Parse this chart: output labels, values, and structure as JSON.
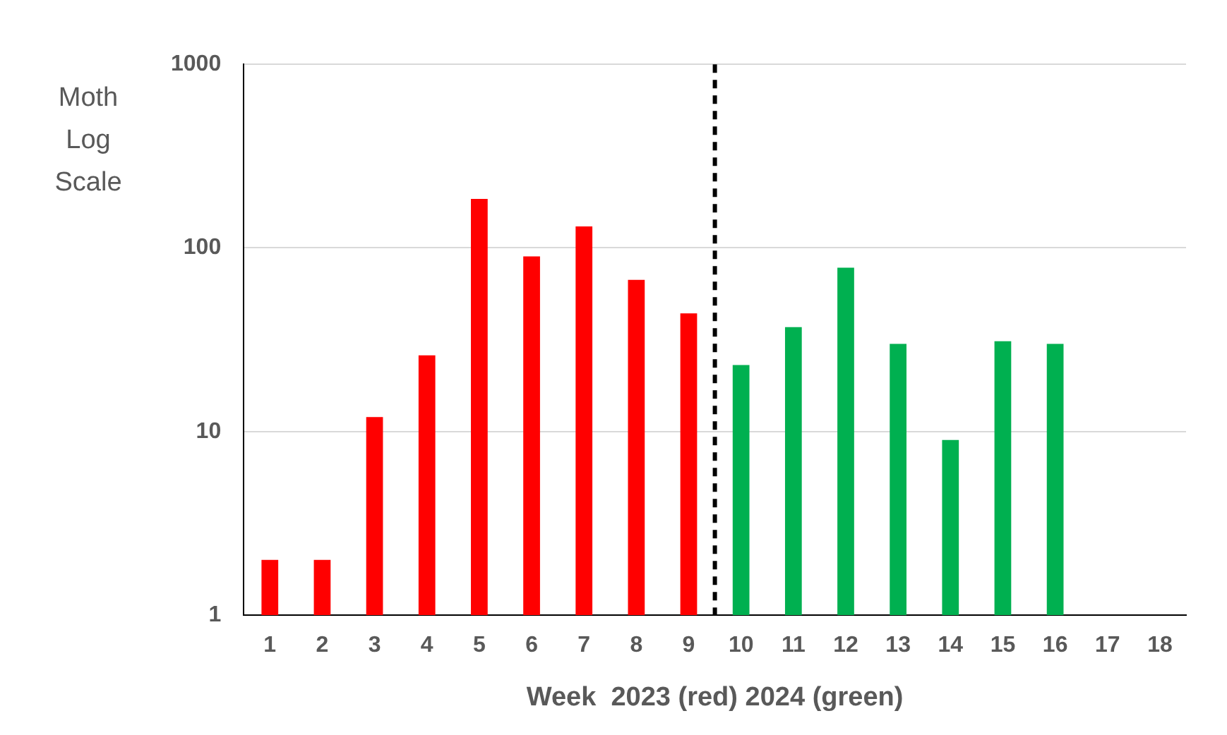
{
  "chart_data": {
    "type": "bar",
    "xlabel": "Week  2023 (red) 2024 (green)",
    "ylabel": "Moth Log Scale",
    "x": [
      1,
      2,
      3,
      4,
      5,
      6,
      7,
      8,
      9,
      10,
      11,
      12,
      13,
      14,
      15,
      16
    ],
    "values": [
      2,
      2,
      12,
      26,
      185,
      90,
      131,
      67,
      44,
      23,
      37,
      78,
      30,
      9,
      31,
      30
    ],
    "colors": [
      "#ff0000",
      "#ff0000",
      "#ff0000",
      "#ff0000",
      "#ff0000",
      "#ff0000",
      "#ff0000",
      "#ff0000",
      "#ff0000",
      "#00b050",
      "#00b050",
      "#00b050",
      "#00b050",
      "#00b050",
      "#00b050",
      "#00b050"
    ],
    "xlim": [
      0.5,
      18.5
    ],
    "xticks": [
      1,
      2,
      3,
      4,
      5,
      6,
      7,
      8,
      9,
      10,
      11,
      12,
      13,
      14,
      15,
      16,
      17,
      18
    ],
    "ylim": [
      1,
      1000
    ],
    "yticks": [
      1,
      10,
      100,
      1000
    ],
    "log": true,
    "grid": "y",
    "ref_lines": [
      {
        "axis": "x",
        "value": 9.5,
        "color": "#000000",
        "line_style": "dashed"
      }
    ]
  }
}
